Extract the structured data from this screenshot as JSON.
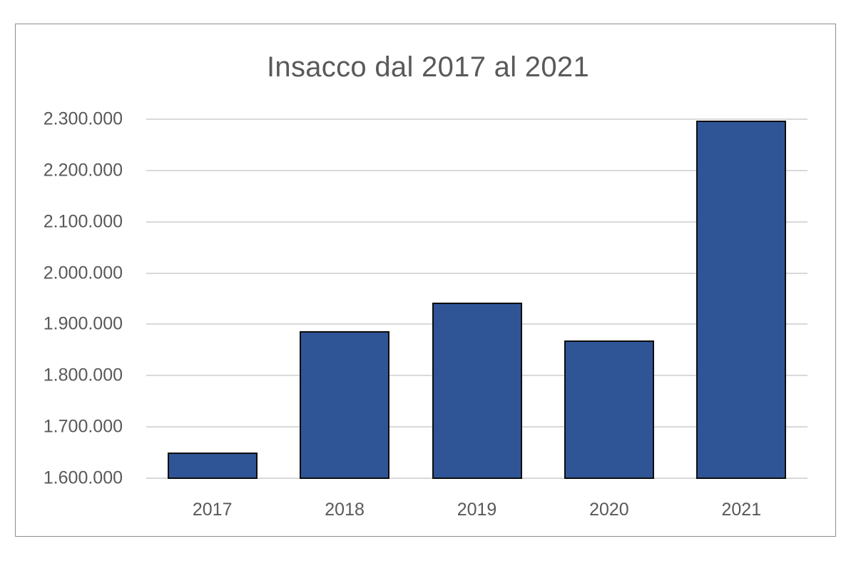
{
  "chart_data": {
    "type": "bar",
    "title": "Insacco dal 2017 al 2021",
    "xlabel": "",
    "ylabel": "",
    "categories": [
      "2017",
      "2018",
      "2019",
      "2020",
      "2021"
    ],
    "values": [
      1650000,
      1887000,
      1943000,
      1868000,
      2297000
    ],
    "ylim": [
      1600000,
      2300000
    ],
    "yticks": [
      1600000,
      1700000,
      1800000,
      1900000,
      2000000,
      2100000,
      2200000,
      2300000
    ],
    "ytick_labels": [
      "1.600.000",
      "1.700.000",
      "1.800.000",
      "1.900.000",
      "2.000.000",
      "2.100.000",
      "2.200.000",
      "2.300.000"
    ],
    "grid": true,
    "legend": null,
    "bar_color": "#2f5597",
    "bar_edge_color": "#0d0d0d"
  }
}
